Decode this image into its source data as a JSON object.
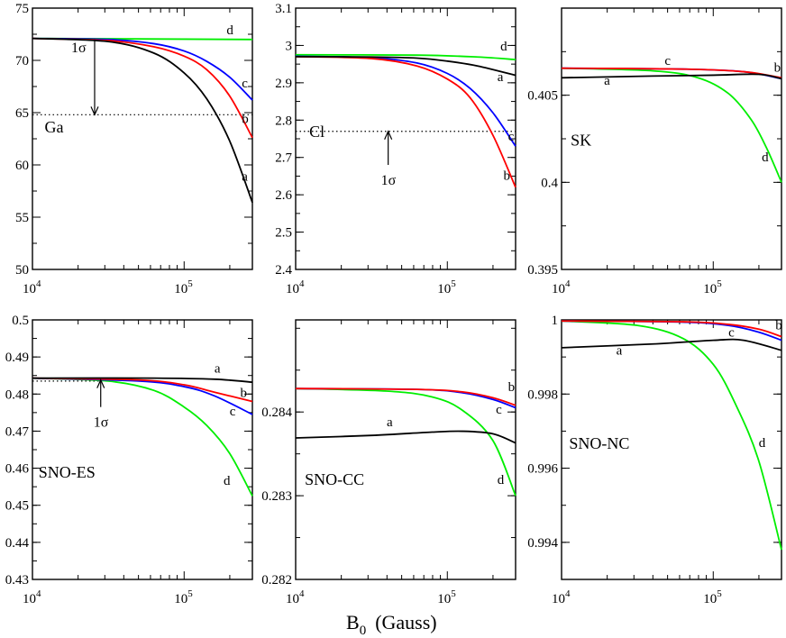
{
  "figure": {
    "xlabel_main": "B",
    "xlabel_sub": "0",
    "xlabel_unit": "(Gauss)",
    "xticks": [
      {
        "base": "10",
        "exp": "4",
        "log": 4
      },
      {
        "base": "10",
        "exp": "5",
        "log": 5
      }
    ],
    "x_log_range": [
      4,
      5.45
    ],
    "colors": {
      "a": "#000000",
      "b": "#ff0000",
      "c": "#0000ff",
      "d": "#00ee00"
    }
  },
  "chart_data": [
    {
      "type": "line",
      "title": "Ga",
      "ylim": [
        50,
        75
      ],
      "yticks": [
        "50",
        "55",
        "60",
        "65",
        "70",
        "75"
      ],
      "ytick_values": [
        50,
        55,
        60,
        65,
        70,
        75
      ],
      "hline": {
        "y": 64.8
      },
      "annotation": {
        "text": "1σ",
        "arrow": "down",
        "from": 72,
        "to": 64.8,
        "x": 4.41
      },
      "series": [
        {
          "name": "a",
          "label": "a",
          "x": [
            4,
            4.5,
            4.8,
            5,
            5.15,
            5.3,
            5.45
          ],
          "y": [
            72.1,
            71.8,
            70.7,
            68.8,
            66.3,
            62.3,
            56.4
          ],
          "label_pos": [
            5.38,
            58.5
          ]
        },
        {
          "name": "b",
          "label": "b",
          "x": [
            4,
            4.5,
            4.8,
            5,
            5.15,
            5.3,
            5.45
          ],
          "y": [
            72.1,
            71.9,
            71.3,
            70.4,
            69.1,
            66.6,
            62.6
          ],
          "label_pos": [
            5.38,
            64.0
          ]
        },
        {
          "name": "c",
          "label": "c",
          "x": [
            4,
            4.5,
            4.8,
            5,
            5.15,
            5.3,
            5.45
          ],
          "y": [
            72.1,
            72.0,
            71.6,
            70.9,
            69.9,
            68.4,
            66.2
          ],
          "label_pos": [
            5.38,
            67.4
          ]
        },
        {
          "name": "d",
          "label": "d",
          "x": [
            4,
            5.45
          ],
          "y": [
            72.1,
            72.0
          ],
          "label_pos": [
            5.28,
            72.5
          ]
        }
      ],
      "panel_label_pos": [
        4.08,
        63.1
      ]
    },
    {
      "type": "line",
      "title": "Cl",
      "ylim": [
        2.4,
        3.1
      ],
      "yticks": [
        "2.4",
        "2.5",
        "2.6",
        "2.7",
        "2.8",
        "2.9",
        "3",
        "3.1"
      ],
      "ytick_values": [
        2.4,
        2.5,
        2.6,
        2.7,
        2.8,
        2.9,
        3.0,
        3.1
      ],
      "hline": {
        "y": 2.77
      },
      "annotation": {
        "text": "1σ",
        "arrow": "up",
        "from": 2.68,
        "to": 2.77,
        "x": 4.61
      },
      "series": [
        {
          "name": "a",
          "label": "a",
          "x": [
            4,
            4.5,
            4.8,
            5,
            5.2,
            5.45
          ],
          "y": [
            2.97,
            2.969,
            2.966,
            2.958,
            2.945,
            2.92
          ],
          "label_pos": [
            5.33,
            2.905
          ]
        },
        {
          "name": "b",
          "label": "b",
          "x": [
            4,
            4.5,
            4.8,
            5,
            5.15,
            5.3,
            5.45
          ],
          "y": [
            2.97,
            2.965,
            2.945,
            2.91,
            2.86,
            2.76,
            2.62
          ],
          "label_pos": [
            5.37,
            2.64
          ]
        },
        {
          "name": "c",
          "label": "c",
          "x": [
            4,
            4.5,
            4.8,
            5,
            5.15,
            5.3,
            5.45
          ],
          "y": [
            2.971,
            2.967,
            2.953,
            2.925,
            2.885,
            2.82,
            2.73
          ],
          "label_pos": [
            5.4,
            2.745
          ]
        },
        {
          "name": "d",
          "label": "d",
          "x": [
            4,
            4.8,
            5.2,
            5.45
          ],
          "y": [
            2.975,
            2.974,
            2.969,
            2.962
          ],
          "label_pos": [
            5.35,
            2.986
          ]
        }
      ],
      "panel_label_pos": [
        4.09,
        2.755
      ]
    },
    {
      "type": "line",
      "title": "SK",
      "ylim": [
        0.395,
        0.41
      ],
      "yticks": [
        "0.395",
        "0.4",
        "0.405"
      ],
      "ytick_values": [
        0.395,
        0.4,
        0.405
      ],
      "series": [
        {
          "name": "a",
          "label": "a",
          "x": [
            4,
            4.6,
            5,
            5.3,
            5.45
          ],
          "y": [
            0.406,
            0.4061,
            0.40615,
            0.4062,
            0.40595
          ],
          "label_pos": [
            4.28,
            0.4056
          ]
        },
        {
          "name": "b",
          "label": "b",
          "x": [
            4,
            4.8,
            5.2,
            5.45
          ],
          "y": [
            0.40655,
            0.4065,
            0.40635,
            0.406
          ],
          "label_pos": [
            5.4,
            0.40635
          ]
        },
        {
          "name": "c",
          "label": "c",
          "x": [
            4,
            4.8,
            5.2,
            5.45
          ],
          "y": [
            0.40655,
            0.4065,
            0.40635,
            0.40595
          ],
          "label_pos": [
            4.68,
            0.40675
          ]
        },
        {
          "name": "d",
          "label": "d",
          "x": [
            4,
            4.6,
            4.9,
            5.1,
            5.25,
            5.35,
            5.45
          ],
          "y": [
            0.40655,
            0.4064,
            0.406,
            0.4051,
            0.4036,
            0.402,
            0.4
          ],
          "label_pos": [
            5.32,
            0.4012
          ]
        }
      ],
      "panel_label_pos": [
        4.06,
        0.4021
      ]
    },
    {
      "type": "line",
      "title": "SNO-ES",
      "ylim": [
        0.43,
        0.5
      ],
      "yticks": [
        "0.43",
        "0.44",
        "0.45",
        "0.46",
        "0.47",
        "0.48",
        "0.49",
        "0.5"
      ],
      "ytick_values": [
        0.43,
        0.44,
        0.45,
        0.46,
        0.47,
        0.48,
        0.49,
        0.5
      ],
      "hline": {
        "y": 0.4835,
        "x_to": 4.45
      },
      "annotation": {
        "text": "1σ",
        "arrow": "up",
        "from": 0.4765,
        "to": 0.4838,
        "x": 4.45
      },
      "series": [
        {
          "name": "a",
          "label": "a",
          "x": [
            4,
            4.8,
            5.2,
            5.45
          ],
          "y": [
            0.4843,
            0.4843,
            0.484,
            0.4832
          ],
          "label_pos": [
            5.2,
            0.4858
          ]
        },
        {
          "name": "b",
          "label": "b",
          "x": [
            4,
            4.7,
            5,
            5.2,
            5.45
          ],
          "y": [
            0.4843,
            0.4838,
            0.4825,
            0.4805,
            0.478
          ],
          "label_pos": [
            5.37,
            0.4792
          ]
        },
        {
          "name": "c",
          "label": "c",
          "x": [
            4,
            4.7,
            5,
            5.2,
            5.45
          ],
          "y": [
            0.4843,
            0.4835,
            0.482,
            0.4795,
            0.4745
          ],
          "label_pos": [
            5.3,
            0.4742
          ]
        },
        {
          "name": "d",
          "label": "d",
          "x": [
            4,
            4.5,
            4.8,
            5,
            5.15,
            5.3,
            5.45
          ],
          "y": [
            0.4843,
            0.4835,
            0.481,
            0.4765,
            0.4715,
            0.464,
            0.4525
          ],
          "label_pos": [
            5.26,
            0.4555
          ]
        }
      ],
      "panel_label_pos": [
        4.04,
        0.4575
      ]
    },
    {
      "type": "line",
      "title": "SNO-CC",
      "ylim": [
        0.282,
        0.2851
      ],
      "yticks": [
        "0.282",
        "0.283",
        "0.284"
      ],
      "ytick_values": [
        0.282,
        0.283,
        0.284
      ],
      "series": [
        {
          "name": "a",
          "label": "a",
          "x": [
            4,
            4.5,
            4.9,
            5.1,
            5.3,
            5.45
          ],
          "y": [
            0.28369,
            0.28372,
            0.28376,
            0.28377,
            0.28374,
            0.28363
          ],
          "label_pos": [
            4.6,
            0.28383
          ]
        },
        {
          "name": "b",
          "label": "b",
          "x": [
            4,
            4.8,
            5.1,
            5.3,
            5.45
          ],
          "y": [
            0.28428,
            0.28427,
            0.28424,
            0.28417,
            0.28408
          ],
          "label_pos": [
            5.4,
            0.28425
          ]
        },
        {
          "name": "c",
          "label": "c",
          "x": [
            4,
            4.8,
            5.1,
            5.3,
            5.45
          ],
          "y": [
            0.28428,
            0.28427,
            0.28423,
            0.28415,
            0.28405
          ],
          "label_pos": [
            5.32,
            0.28398
          ]
        },
        {
          "name": "d",
          "label": "d",
          "x": [
            4,
            4.6,
            4.9,
            5.1,
            5.3,
            5.45
          ],
          "y": [
            0.28428,
            0.28425,
            0.28418,
            0.28402,
            0.28366,
            0.283
          ],
          "label_pos": [
            5.33,
            0.28314
          ]
        }
      ],
      "panel_label_pos": [
        4.06,
        0.28313
      ]
    },
    {
      "type": "line",
      "title": "SNO-NC",
      "ylim": [
        0.993,
        1.0
      ],
      "yticks": [
        "0.994",
        "0.996",
        "0.998",
        "1"
      ],
      "ytick_values": [
        0.994,
        0.996,
        0.998,
        1.0
      ],
      "series": [
        {
          "name": "a",
          "label": "a",
          "x": [
            4,
            4.6,
            5,
            5.2,
            5.45
          ],
          "y": [
            0.99925,
            0.99935,
            0.99945,
            0.99945,
            0.99918
          ],
          "label_pos": [
            4.36,
            0.99907
          ]
        },
        {
          "name": "b",
          "label": "b",
          "x": [
            4,
            4.8,
            5.1,
            5.3,
            5.45
          ],
          "y": [
            0.99997,
            0.99995,
            0.99988,
            0.99975,
            0.99955
          ],
          "label_pos": [
            5.41,
            0.99975
          ]
        },
        {
          "name": "c",
          "label": "c",
          "x": [
            4,
            4.8,
            5.1,
            5.3,
            5.45
          ],
          "y": [
            0.99997,
            0.99994,
            0.99985,
            0.99967,
            0.99945
          ],
          "label_pos": [
            5.1,
            0.99955
          ]
        },
        {
          "name": "d",
          "label": "d",
          "x": [
            4,
            4.5,
            4.8,
            5,
            5.15,
            5.3,
            5.45
          ],
          "y": [
            0.99997,
            0.99985,
            0.9995,
            0.9988,
            0.9977,
            0.9962,
            0.9938
          ],
          "label_pos": [
            5.3,
            0.99657
          ]
        }
      ],
      "panel_label_pos": [
        4.05,
        0.99652
      ]
    }
  ]
}
